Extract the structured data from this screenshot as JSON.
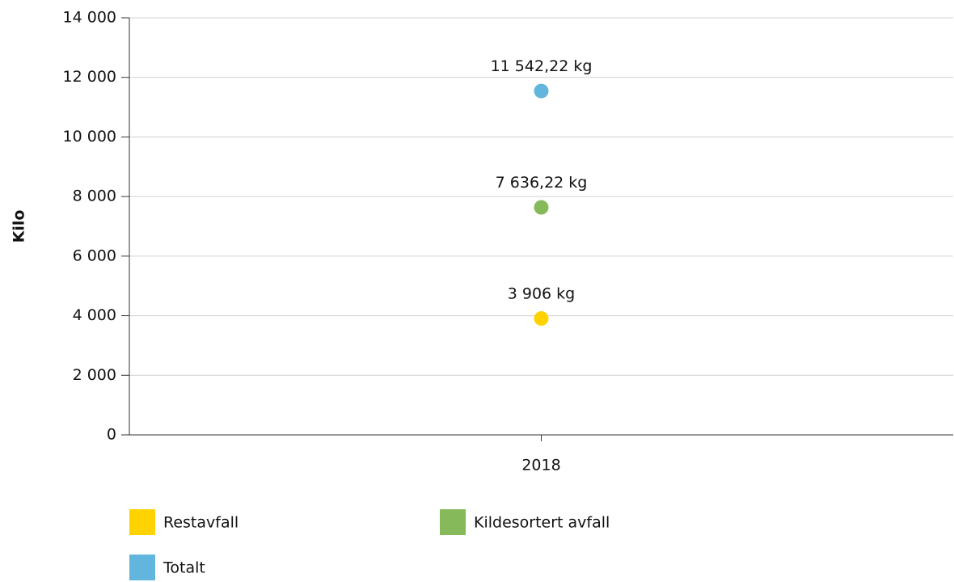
{
  "chart_data": {
    "type": "point",
    "y_label": "Kilo",
    "categories": [
      "2018"
    ],
    "series": [
      {
        "name": "Restavfall",
        "color": "#ffd200",
        "values": [
          3906
        ],
        "value_labels": [
          "3 906 kg"
        ]
      },
      {
        "name": "Kildesortert avfall",
        "color": "#86b95a",
        "values": [
          7636.22
        ],
        "value_labels": [
          "7 636,22 kg"
        ]
      },
      {
        "name": "Totalt",
        "color": "#62b5dc",
        "values": [
          11542.22
        ],
        "value_labels": [
          "11 542,22 kg"
        ]
      }
    ],
    "ylim": [
      0,
      14000
    ],
    "yticks": [
      0,
      {
        "value": 2000,
        "label": "2 000"
      },
      {
        "value": 4000,
        "label": "4 000"
      },
      {
        "value": 6000,
        "label": "6 000"
      },
      {
        "value": 8000,
        "label": "8 000"
      },
      {
        "value": 10000,
        "label": "10 000"
      },
      {
        "value": 12000,
        "label": "12 000"
      },
      {
        "value": 14000,
        "label": "14 000"
      }
    ],
    "grid": true
  }
}
